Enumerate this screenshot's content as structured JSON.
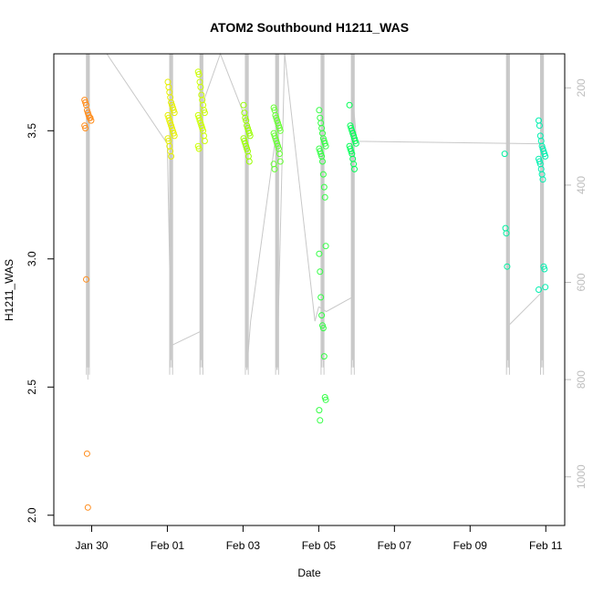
{
  "chart_data": {
    "type": "scatter",
    "title": "ATOM2 Southbound H1211_WAS",
    "xlabel": "Date",
    "ylabel": "H1211_WAS",
    "x_ticks": [
      "Jan 30",
      "Feb 01",
      "Feb 03",
      "Feb 05",
      "Feb 07",
      "Feb 09",
      "Feb 11"
    ],
    "y_ticks": [
      2.0,
      2.5,
      3.0,
      3.5
    ],
    "y2_ticks": [
      200,
      400,
      600,
      800,
      1000
    ],
    "xlim": [
      "Jan 29",
      "Feb 11.5"
    ],
    "ylim": [
      1.96,
      3.8
    ],
    "y2lim": [
      1100,
      130
    ],
    "marker": "open-circle",
    "clusters": [
      {
        "x": "Jan 29.9",
        "color": "#ff8c1a",
        "values": [
          3.62,
          3.61,
          3.6,
          3.58,
          3.57,
          3.56,
          3.55,
          3.55,
          3.54,
          3.52,
          3.51,
          2.92,
          2.24,
          2.03
        ]
      },
      {
        "x": "Feb 01.1",
        "color": "#e6f000",
        "values": [
          3.69,
          3.67,
          3.65,
          3.63,
          3.61,
          3.6,
          3.59,
          3.58,
          3.57,
          3.56,
          3.55,
          3.54,
          3.53,
          3.52,
          3.51,
          3.5,
          3.49,
          3.48,
          3.47,
          3.46,
          3.44,
          3.42,
          3.4
        ]
      },
      {
        "x": "Feb 01.9",
        "color": "#ccff00",
        "values": [
          3.73,
          3.72,
          3.69,
          3.67,
          3.64,
          3.62,
          3.6,
          3.58,
          3.57,
          3.56,
          3.55,
          3.54,
          3.53,
          3.52,
          3.51,
          3.5,
          3.48,
          3.46,
          3.44,
          3.43
        ]
      },
      {
        "x": "Feb 03.1",
        "color": "#99ff00",
        "values": [
          3.6,
          3.57,
          3.55,
          3.54,
          3.52,
          3.51,
          3.5,
          3.49,
          3.48,
          3.47,
          3.46,
          3.45,
          3.44,
          3.43,
          3.42,
          3.4,
          3.38
        ]
      },
      {
        "x": "Feb 03.9",
        "color": "#66ff33",
        "values": [
          3.59,
          3.58,
          3.56,
          3.55,
          3.54,
          3.53,
          3.52,
          3.51,
          3.5,
          3.49,
          3.48,
          3.47,
          3.46,
          3.45,
          3.44,
          3.43,
          3.41,
          3.38,
          3.37,
          3.35
        ]
      },
      {
        "x": "Feb 05.1",
        "color": "#33ff44",
        "values": [
          3.58,
          3.55,
          3.53,
          3.51,
          3.49,
          3.47,
          3.46,
          3.45,
          3.44,
          3.43,
          3.42,
          3.41,
          3.4,
          3.38,
          3.33,
          3.28,
          3.24,
          3.05,
          3.02,
          2.95,
          2.85,
          2.78,
          2.74,
          2.73,
          2.62,
          2.46,
          2.45,
          2.41,
          2.37
        ]
      },
      {
        "x": "Feb 05.9",
        "color": "#00ff55",
        "values": [
          3.6,
          3.52,
          3.51,
          3.5,
          3.49,
          3.48,
          3.47,
          3.46,
          3.45,
          3.44,
          3.43,
          3.42,
          3.41,
          3.39,
          3.37,
          3.35
        ]
      },
      {
        "x": "Feb 10.0",
        "color": "#00f0a0",
        "values": [
          3.41,
          3.12,
          3.1,
          2.97
        ]
      },
      {
        "x": "Feb 10.9",
        "color": "#00f0b0",
        "values": [
          3.54,
          3.52,
          3.48,
          3.46,
          3.44,
          3.43,
          3.42,
          3.41,
          3.4,
          3.39,
          3.38,
          3.37,
          3.35,
          3.33,
          3.31,
          2.97,
          2.96,
          2.89,
          2.88
        ]
      }
    ],
    "secondary_line": {
      "axis": "right",
      "color": "#c8c8c8",
      "segments": [
        {
          "x": [
            "Jan 29.9",
            "Jan 29.9",
            "Jan 29.9"
          ],
          "y": [
            130,
            770,
            800
          ]
        },
        {
          "x": [
            "Jan 30.4",
            "Feb 01.0",
            "Feb 01.1",
            "Feb 01.1"
          ],
          "y": [
            130,
            315,
            730,
            240
          ]
        },
        {
          "x": [
            "Feb 01.1",
            "Feb 01.9",
            "Feb 01.9"
          ],
          "y": [
            730,
            700,
            240
          ]
        },
        {
          "x": [
            "Feb 01.9",
            "Feb 02.4",
            "Feb 03.1",
            "Feb 03.1"
          ],
          "y": [
            240,
            130,
            270,
            780
          ]
        },
        {
          "x": [
            "Feb 03.1",
            "Feb 03.2",
            "Feb 03.9",
            "Feb 03.9"
          ],
          "y": [
            780,
            680,
            280,
            780
          ]
        },
        {
          "x": [
            "Feb 03.9",
            "Feb 04.1",
            "Feb 04.9",
            "Feb 05.0"
          ],
          "y": [
            780,
            130,
            680,
            650
          ]
        },
        {
          "x": [
            "Feb 05.0",
            "Feb 05.2",
            "Feb 05.9",
            "Feb 05.9"
          ],
          "y": [
            650,
            660,
            630,
            220
          ]
        },
        {
          "x": [
            "Feb 05.9",
            "Feb 06.0",
            "Feb 10.9",
            "Feb 10.9"
          ],
          "y": [
            220,
            310,
            315,
            130
          ]
        },
        {
          "x": [
            "Feb 10.0",
            "Feb 10.0",
            "Feb 10.9",
            "Feb 10.9"
          ],
          "y": [
            760,
            690,
            620,
            760
          ]
        }
      ]
    }
  }
}
